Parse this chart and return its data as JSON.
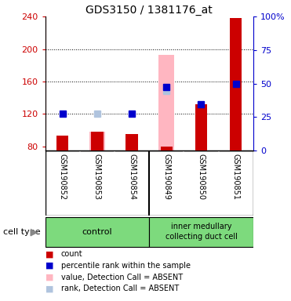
{
  "title": "GDS3150 / 1381176_at",
  "samples": [
    "GSM190852",
    "GSM190853",
    "GSM190854",
    "GSM190849",
    "GSM190850",
    "GSM190851"
  ],
  "ylim_left": [
    75,
    240
  ],
  "ylim_right": [
    0,
    100
  ],
  "yticks_left": [
    80,
    120,
    160,
    200,
    240
  ],
  "yticks_right": [
    0,
    25,
    50,
    75,
    100
  ],
  "ytick_labels_right": [
    "0",
    "25",
    "50",
    "75",
    "100%"
  ],
  "red_bars": [
    93,
    98,
    95,
    80,
    132,
    238
  ],
  "pink_bars": [
    0,
    98,
    0,
    193,
    0,
    0
  ],
  "blue_squares": [
    120,
    0,
    120,
    153,
    132,
    157
  ],
  "blue_square_absent": [
    0,
    120,
    0,
    148,
    0,
    0
  ],
  "absent_samples": [
    1,
    3
  ],
  "bg_color": "#ffffff",
  "gray_bg": "#d0d0d0",
  "green_color": "#7dda7d",
  "left_axis_color": "#cc0000",
  "right_axis_color": "#0000cc",
  "dark_red": "#cc0000",
  "dark_blue": "#0000cc",
  "pink_color": "#ffb6c1",
  "blue_absent_color": "#b0c4de",
  "legend_colors": [
    "#cc0000",
    "#0000cc",
    "#ffb6c1",
    "#b0c4de"
  ],
  "legend_labels": [
    "count",
    "percentile rank within the sample",
    "value, Detection Call = ABSENT",
    "rank, Detection Call = ABSENT"
  ]
}
